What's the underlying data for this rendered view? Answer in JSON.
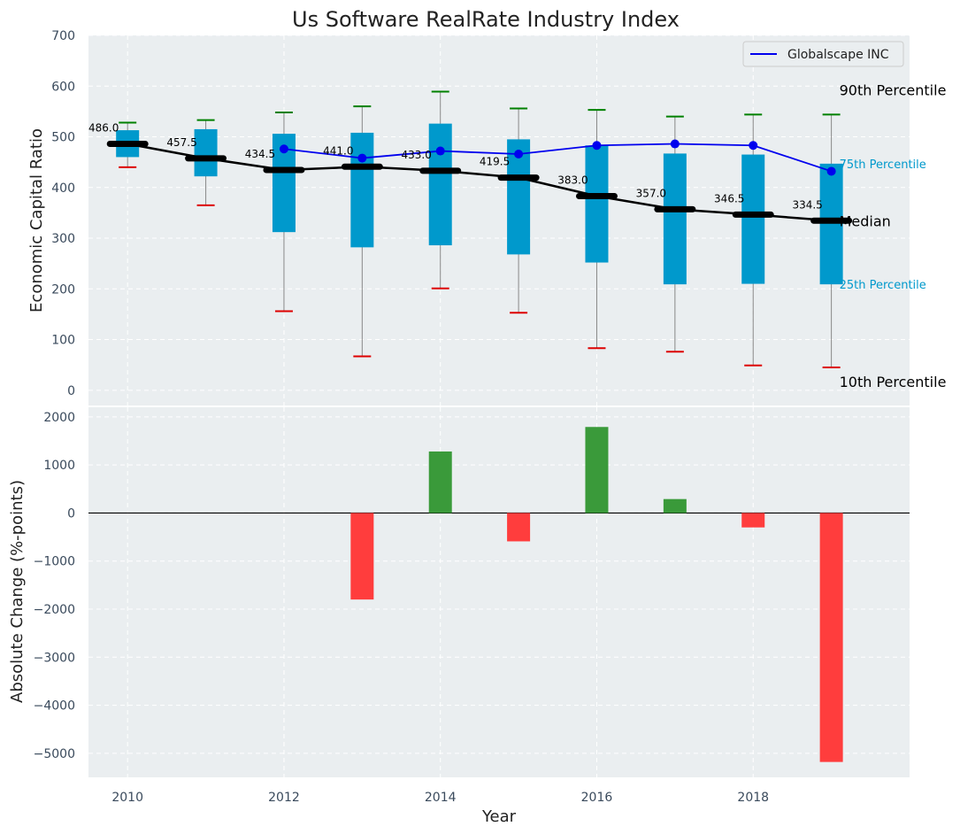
{
  "chart_data": [
    {
      "type": "box",
      "title": "Us Software RealRate Industry Index",
      "xlabel": "",
      "ylabel": "Economic Capital Ratio",
      "ylim": [
        -30,
        700
      ],
      "yticks": [
        0,
        100,
        200,
        300,
        400,
        500,
        600,
        700
      ],
      "grid": true,
      "legend_position": "top-right",
      "legend": [
        "Globalscape INC"
      ],
      "years": [
        2010,
        2011,
        2012,
        2013,
        2014,
        2015,
        2016,
        2017,
        2018,
        2019
      ],
      "median": [
        486.0,
        457.5,
        434.5,
        441.0,
        433.0,
        419.5,
        383.0,
        357.0,
        346.5,
        334.5
      ],
      "median_labels": [
        "486.0",
        "457.5",
        "434.5",
        "441.0",
        "433.0",
        "419.5",
        "383.0",
        "357.0",
        "346.5",
        "334.5"
      ],
      "p25": [
        460,
        422,
        312,
        282,
        286,
        268,
        252,
        209,
        210,
        209
      ],
      "p75": [
        513,
        515,
        506,
        508,
        526,
        495,
        483,
        467,
        465,
        447
      ],
      "p10": [
        440,
        365,
        156,
        67,
        201,
        153,
        83,
        76,
        49,
        45
      ],
      "p90": [
        528,
        533,
        548,
        560,
        589,
        556,
        553,
        540,
        544,
        544
      ],
      "company_years": [
        2012,
        2013,
        2014,
        2015,
        2016,
        2017,
        2018,
        2019
      ],
      "company_values": [
        476,
        458,
        472,
        466,
        483,
        486,
        483,
        432
      ],
      "side_labels": {
        "p90": "90th Percentile",
        "p75": "75th Percentile",
        "median": "Median",
        "p25": "25th Percentile",
        "p10": "10th Percentile"
      }
    },
    {
      "type": "bar",
      "xlabel": "Year",
      "ylabel": "Absolute Change (%-points)",
      "ylim": [
        -5500,
        2200
      ],
      "yticks": [
        2000,
        1000,
        0,
        -1000,
        -2000,
        -3000,
        -4000,
        -5000
      ],
      "ytick_labels": [
        "2000",
        "1000",
        "0",
        "−1000",
        "−2000",
        "−3000",
        "−4000",
        "−5000"
      ],
      "xticks": [
        2010,
        2012,
        2014,
        2016,
        2018
      ],
      "xlim": [
        2009.5,
        2020
      ],
      "grid": true,
      "years": [
        2013,
        2014,
        2015,
        2016,
        2017,
        2018,
        2019
      ],
      "values": [
        -1800,
        1280,
        -590,
        1790,
        290,
        -300,
        -5180
      ],
      "colors": {
        "positive": "#3a9a3a",
        "negative": "#ff3d3d"
      }
    }
  ],
  "colors": {
    "plot_bg": "#eaeef0",
    "box": "#0099cc",
    "median_line": "#000000",
    "company_line": "#0000ee",
    "whisker_top": "#008000",
    "whisker_bottom": "#dd0000",
    "whisker_line": "#888888"
  }
}
